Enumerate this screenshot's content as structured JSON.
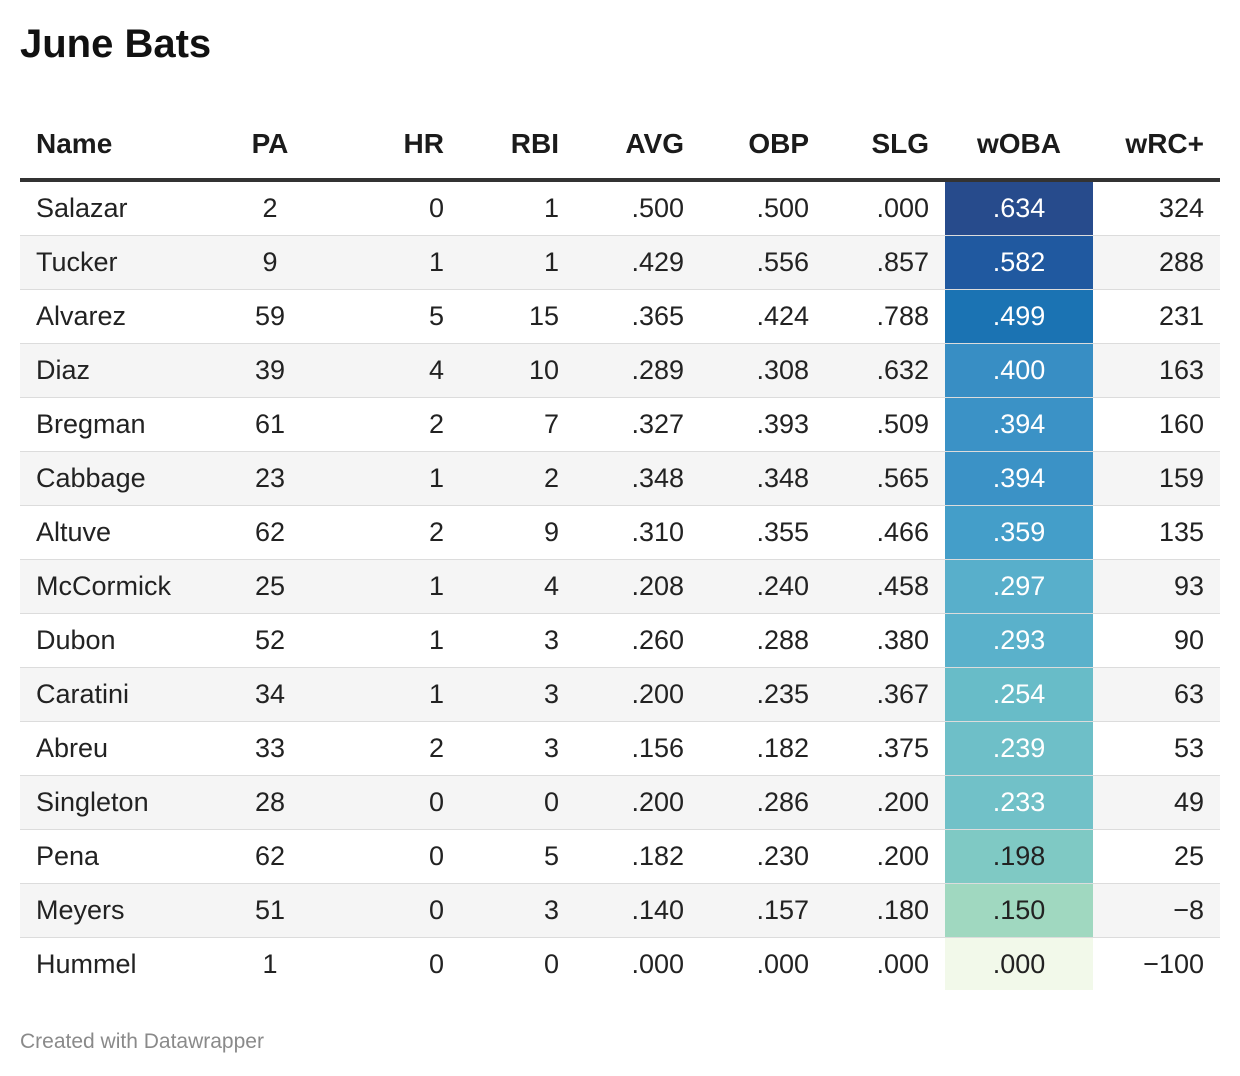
{
  "title": "June Bats",
  "footer": "Created with Datawrapper",
  "chart_data": {
    "type": "table",
    "columns": [
      "Name",
      "PA",
      "HR",
      "RBI",
      "AVG",
      "OBP",
      "SLG",
      "wOBA",
      "wRC+"
    ],
    "heatmap_column": "wOBA",
    "heatmap_colors": {
      "low": "#f2f9ea",
      "mid": "#4fa8c9",
      "high": "#27478b"
    },
    "rows": [
      {
        "name": "Salazar",
        "pa": "2",
        "hr": "0",
        "rbi": "1",
        "avg": ".500",
        "obp": ".500",
        "slg": ".000",
        "woba": ".634",
        "wrc": "324",
        "woba_color": "#274b8c"
      },
      {
        "name": "Tucker",
        "pa": "9",
        "hr": "1",
        "rbi": "1",
        "avg": ".429",
        "obp": ".556",
        "slg": ".857",
        "woba": ".582",
        "wrc": "288",
        "woba_color": "#2059a0"
      },
      {
        "name": "Alvarez",
        "pa": "59",
        "hr": "5",
        "rbi": "15",
        "avg": ".365",
        "obp": ".424",
        "slg": ".788",
        "woba": ".499",
        "wrc": "231",
        "woba_color": "#1b73b3"
      },
      {
        "name": "Diaz",
        "pa": "39",
        "hr": "4",
        "rbi": "10",
        "avg": ".289",
        "obp": ".308",
        "slg": ".632",
        "woba": ".400",
        "wrc": "163",
        "woba_color": "#388ec4"
      },
      {
        "name": "Bregman",
        "pa": "61",
        "hr": "2",
        "rbi": "7",
        "avg": ".327",
        "obp": ".393",
        "slg": ".509",
        "woba": ".394",
        "wrc": "160",
        "woba_color": "#3b92c6"
      },
      {
        "name": "Cabbage",
        "pa": "23",
        "hr": "1",
        "rbi": "2",
        "avg": ".348",
        "obp": ".348",
        "slg": ".565",
        "woba": ".394",
        "wrc": "159",
        "woba_color": "#3b92c6"
      },
      {
        "name": "Altuve",
        "pa": "62",
        "hr": "2",
        "rbi": "9",
        "avg": ".310",
        "obp": ".355",
        "slg": ".466",
        "woba": ".359",
        "wrc": "135",
        "woba_color": "#449ec9"
      },
      {
        "name": "McCormick",
        "pa": "25",
        "hr": "1",
        "rbi": "4",
        "avg": ".208",
        "obp": ".240",
        "slg": ".458",
        "woba": ".297",
        "wrc": "93",
        "woba_color": "#58afcb"
      },
      {
        "name": "Dubon",
        "pa": "52",
        "hr": "1",
        "rbi": "3",
        "avg": ".260",
        "obp": ".288",
        "slg": ".380",
        "woba": ".293",
        "wrc": "90",
        "woba_color": "#5ab1cb"
      },
      {
        "name": "Caratini",
        "pa": "34",
        "hr": "1",
        "rbi": "3",
        "avg": ".200",
        "obp": ".235",
        "slg": ".367",
        "woba": ".254",
        "wrc": "63",
        "woba_color": "#68bcc8"
      },
      {
        "name": "Abreu",
        "pa": "33",
        "hr": "2",
        "rbi": "3",
        "avg": ".156",
        "obp": ".182",
        "slg": ".375",
        "woba": ".239",
        "wrc": "53",
        "woba_color": "#6ebfc8"
      },
      {
        "name": "Singleton",
        "pa": "28",
        "hr": "0",
        "rbi": "0",
        "avg": ".200",
        "obp": ".286",
        "slg": ".200",
        "woba": ".233",
        "wrc": "49",
        "woba_color": "#71c1c8"
      },
      {
        "name": "Pena",
        "pa": "62",
        "hr": "0",
        "rbi": "5",
        "avg": ".182",
        "obp": ".230",
        "slg": ".200",
        "woba": ".198",
        "wrc": "25",
        "woba_color": "#7fc9c4"
      },
      {
        "name": "Meyers",
        "pa": "51",
        "hr": "0",
        "rbi": "3",
        "avg": ".140",
        "obp": ".157",
        "slg": ".180",
        "woba": ".150",
        "wrc": "−8",
        "woba_color": "#a0d8c0"
      },
      {
        "name": "Hummel",
        "pa": "1",
        "hr": "0",
        "rbi": "0",
        "avg": ".000",
        "obp": ".000",
        "slg": ".000",
        "woba": ".000",
        "wrc": "−100",
        "woba_color": "#f2f9ea"
      }
    ]
  }
}
